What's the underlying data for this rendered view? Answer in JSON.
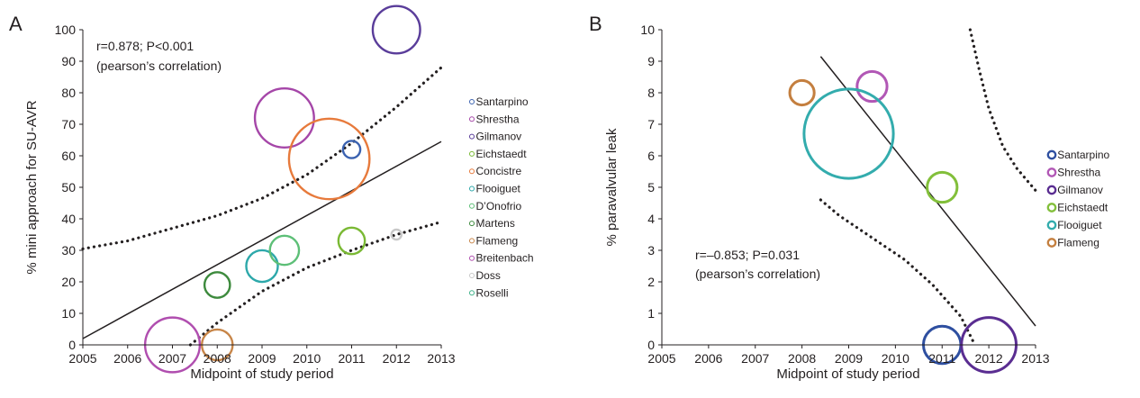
{
  "figure": {
    "background": "#ffffff",
    "text_color": "#231f20"
  },
  "chart_data": [
    {
      "panel": "A",
      "type": "scatter",
      "variant": "bubble-meta-regression",
      "title": "",
      "xlabel": "Midpoint of study period",
      "ylabel": "% mini approach for SU-AVR",
      "xlim": [
        2005,
        2013
      ],
      "ylim": [
        0,
        100
      ],
      "xticks": [
        "2005",
        "2006",
        "2007",
        "2008",
        "2009",
        "2010",
        "2011",
        "2012",
        "2013"
      ],
      "yticks": [
        "0",
        "10",
        "20",
        "30",
        "40",
        "50",
        "60",
        "70",
        "80",
        "90",
        "100"
      ],
      "grid": false,
      "legend_position": "right",
      "annotation": [
        "r=0.878; P<0.001",
        "(pearson’s correlation)"
      ],
      "series": [
        {
          "name": "Santarpino",
          "color": "#3b62b0",
          "x": 2011.0,
          "y": 62,
          "size": 0.6
        },
        {
          "name": "Shrestha",
          "color": "#a546a8",
          "x": 2009.5,
          "y": 72,
          "size": 7
        },
        {
          "name": "Gilmanov",
          "color": "#5a3d9a",
          "x": 2012.0,
          "y": 100,
          "size": 4.5
        },
        {
          "name": "Eichstaedt",
          "color": "#7ab934",
          "x": 2011.0,
          "y": 33,
          "size": 1.4
        },
        {
          "name": "Concistre",
          "color": "#e77a3c",
          "x": 2010.5,
          "y": 59,
          "size": 13
        },
        {
          "name": "Flooiguet",
          "color": "#2da8aa",
          "x": 2009.0,
          "y": 25,
          "size": 2
        },
        {
          "name": "D’Onofrio",
          "color": "#5dbf77",
          "x": 2009.5,
          "y": 30,
          "size": 1.7
        },
        {
          "name": "Martens",
          "color": "#3d8a3d",
          "x": 2008.0,
          "y": 19,
          "size": 1.3
        },
        {
          "name": "Flameng",
          "color": "#c78548",
          "x": 2008.0,
          "y": 0,
          "size": 1.9
        },
        {
          "name": "Breitenbach",
          "color": "#b04eaf",
          "x": 2007.0,
          "y": 0,
          "size": 6
        },
        {
          "name": "Doss",
          "color": "#c8c8c8",
          "x": 2012.0,
          "y": 35,
          "size": 0.2
        },
        {
          "name": "Roselli",
          "color": "#3fb38a",
          "x": null,
          "y": null,
          "size": 1.5
        }
      ],
      "regression": {
        "x": [
          2005,
          2013
        ],
        "y": [
          2,
          64.5
        ]
      },
      "confidence_band": {
        "upper": {
          "x": [
            2005,
            2006,
            2007,
            2008,
            2009,
            2010,
            2011,
            2012,
            2013
          ],
          "y": [
            30.5,
            33,
            37,
            41,
            46.5,
            54,
            64,
            75.5,
            88
          ]
        },
        "lower": {
          "x": [
            2007.4,
            2008,
            2009,
            2010,
            2011,
            2012,
            2013
          ],
          "y": [
            0,
            7,
            17,
            24.5,
            30,
            35,
            39
          ]
        }
      }
    },
    {
      "panel": "B",
      "type": "scatter",
      "variant": "bubble-meta-regression",
      "title": "",
      "xlabel": "Midpoint of study period",
      "ylabel": "% paravalvular leak",
      "xlim": [
        2005,
        2013
      ],
      "ylim": [
        0,
        10
      ],
      "xticks": [
        "2005",
        "2006",
        "2007",
        "2008",
        "2009",
        "2010",
        "2011",
        "2012",
        "2013"
      ],
      "yticks": [
        "0",
        "1",
        "2",
        "3",
        "4",
        "5",
        "6",
        "7",
        "8",
        "9",
        "10"
      ],
      "grid": false,
      "legend_position": "right",
      "annotation": [
        "r=–0.853; P=0.031",
        "(pearson’s correlation)"
      ],
      "series": [
        {
          "name": "Santarpino",
          "color": "#2e4fa0",
          "x": 2011.0,
          "y": 0,
          "size": 2.8
        },
        {
          "name": "Shrestha",
          "color": "#b157b5",
          "x": 2009.5,
          "y": 8.2,
          "size": 1.8
        },
        {
          "name": "Gilmanov",
          "color": "#5a2d91",
          "x": 2012.0,
          "y": 0,
          "size": 6
        },
        {
          "name": "Eichstaedt",
          "color": "#82bf3a",
          "x": 2011.0,
          "y": 5,
          "size": 1.8
        },
        {
          "name": "Flooiguet",
          "color": "#33acad",
          "x": 2009.0,
          "y": 6.7,
          "size": 16
        },
        {
          "name": "Flameng",
          "color": "#c47f3f",
          "x": 2008.0,
          "y": 8.0,
          "size": 1.2
        }
      ],
      "regression": {
        "x": [
          2008.4,
          2013
        ],
        "y": [
          9.15,
          0.6
        ]
      },
      "confidence_band": {
        "upper": {
          "x": [
            2011.6,
            2011.8,
            2012.0,
            2012.3,
            2012.6,
            2013
          ],
          "y": [
            10,
            8.7,
            7.5,
            6.3,
            5.6,
            4.9
          ]
        },
        "lower": {
          "x": [
            2008.4,
            2008.8,
            2009.5,
            2010.2,
            2010.8,
            2011.4,
            2011.7
          ],
          "y": [
            4.6,
            4.1,
            3.4,
            2.7,
            1.9,
            0.9,
            0
          ]
        }
      }
    }
  ]
}
